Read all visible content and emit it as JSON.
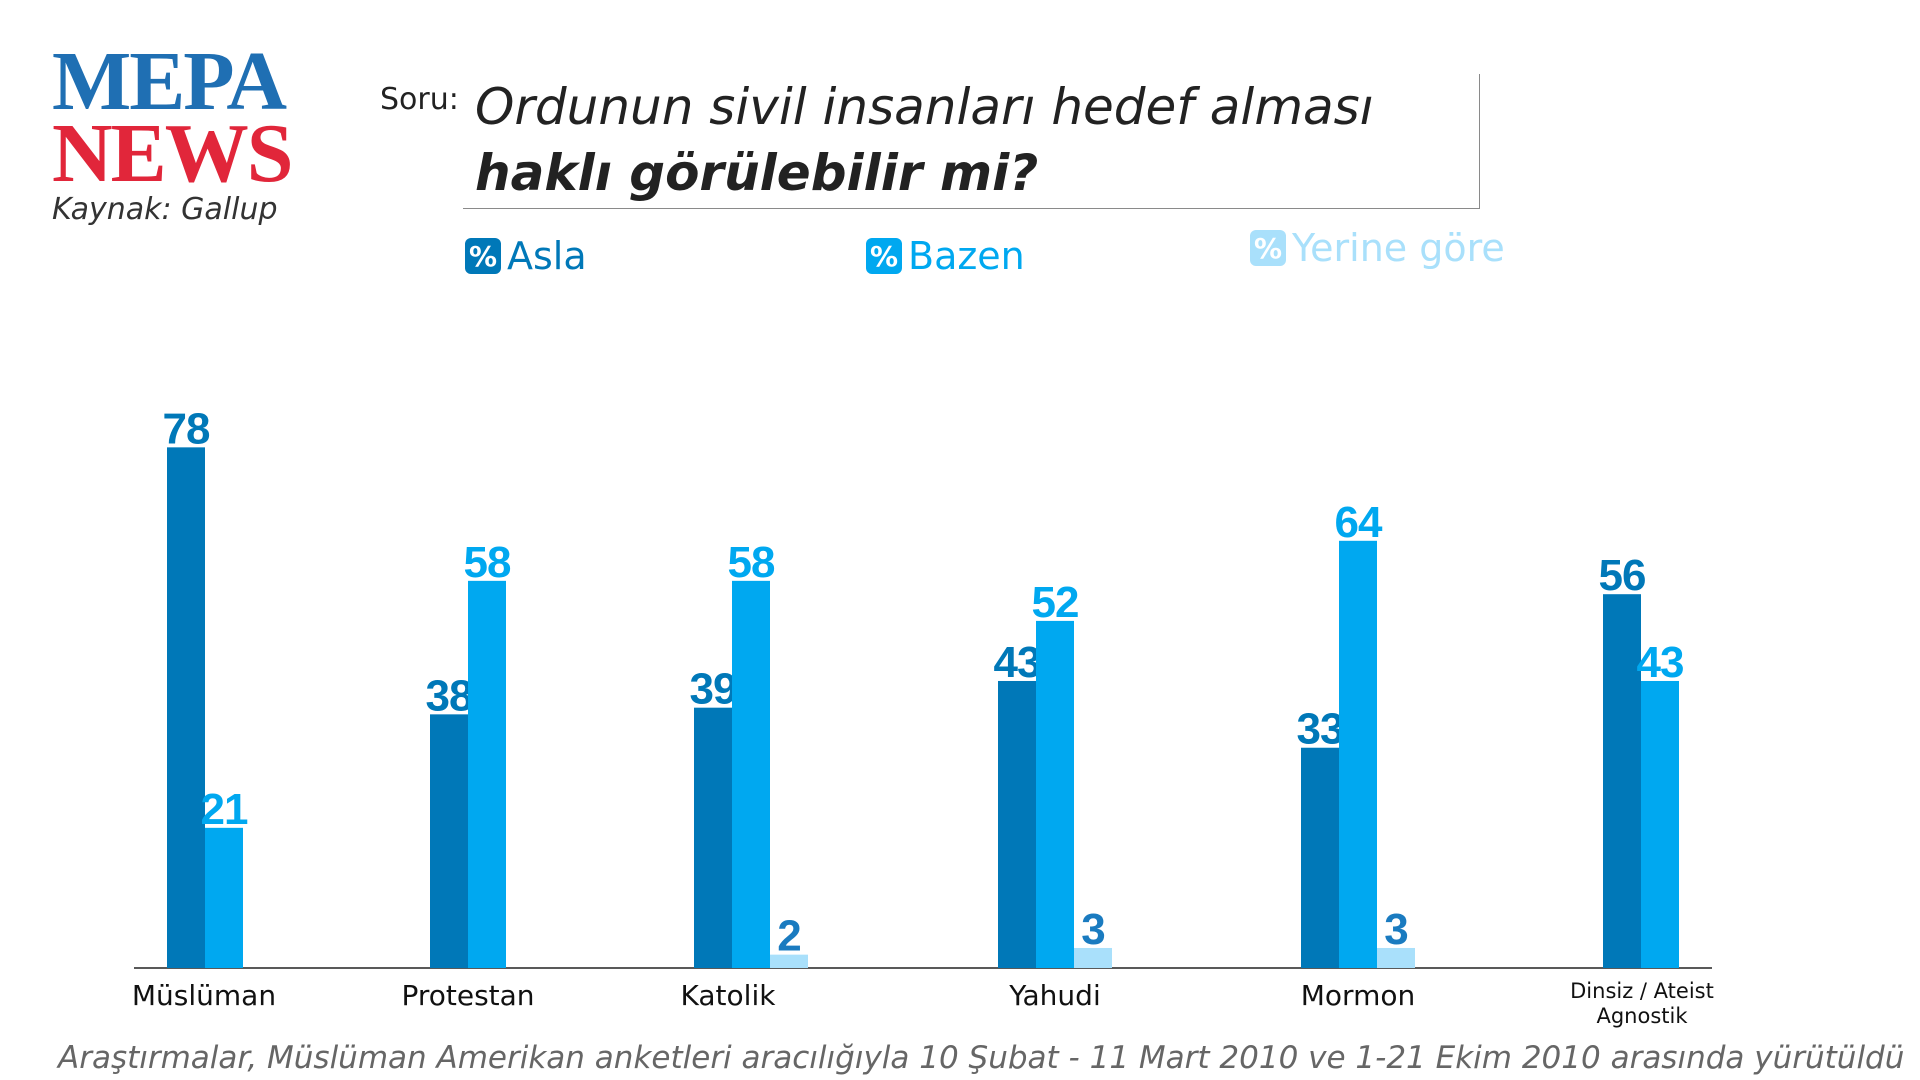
{
  "logo": {
    "line1": "MEPA",
    "line2": "NEWS"
  },
  "source": "Kaynak: Gallup",
  "question": {
    "prefix": "Soru:",
    "line1": "Ordunun sivil insanları hedef alması",
    "line2": "haklı görülebilir mi?"
  },
  "legend": [
    {
      "symbol": "%",
      "label": "Asla",
      "color": "#0078b8"
    },
    {
      "symbol": "%",
      "label": "Bazen",
      "color": "#00a8f0"
    },
    {
      "symbol": "%",
      "label": "Yerine göre",
      "color": "#a9e0fb"
    }
  ],
  "footnote": "Araştırmalar, Müslüman Amerikan anketleri aracılığıyla 10 Şubat - 11 Mart 2010 ve 1-21 Ekim 2010 arasında yürütüldü",
  "chart_data": {
    "type": "bar",
    "title": "Ordunun sivil insanları hedef alması haklı görülebilir mi?",
    "categories": [
      "Müslüman",
      "Protestan",
      "Katolik",
      "Yahudi",
      "Mormon",
      "Dinsiz / Ateist Agnostik"
    ],
    "series": [
      {
        "name": "Asla",
        "values": [
          78,
          38,
          39,
          43,
          33,
          56
        ]
      },
      {
        "name": "Bazen",
        "values": [
          21,
          58,
          58,
          52,
          64,
          43
        ]
      },
      {
        "name": "Yerine göre",
        "values": [
          null,
          null,
          2,
          3,
          3,
          null
        ]
      }
    ],
    "ylim": [
      0,
      80
    ],
    "xlabel": "",
    "ylabel": "%",
    "grid": false,
    "legend": "top",
    "colors": {
      "Asla": "#0078b8",
      "Bazen": "#00a8f0",
      "Yerine göre": "#a9e0fb",
      "label_Asla": "#0078b8",
      "label_Bazen": "#00a8f0",
      "label_Yerine göre": "#1a7bc0"
    }
  }
}
